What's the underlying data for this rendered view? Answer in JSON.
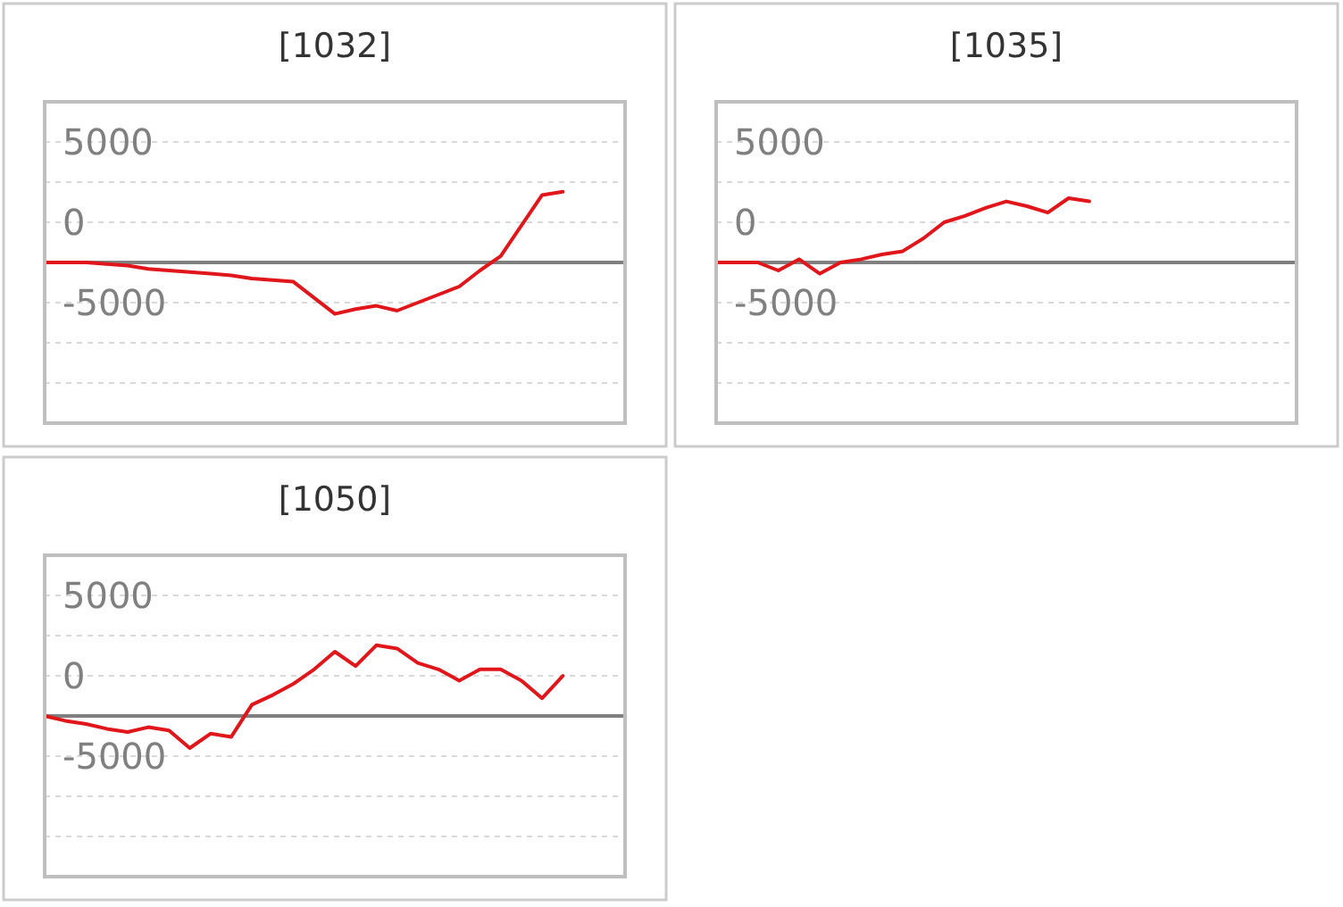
{
  "chart_data": [
    {
      "type": "line",
      "title": "[1032]",
      "categories": [
        null,
        null,
        null,
        null,
        null,
        null,
        null,
        null,
        null,
        null,
        null,
        null,
        null,
        null,
        null,
        null,
        null,
        null,
        null,
        null,
        null,
        null,
        null,
        null,
        null,
        null,
        null,
        null,
        null
      ],
      "series": [
        {
          "color": "#e0161b",
          "values": [
            -2500,
            -2500,
            -2500,
            -2600,
            -2700,
            -2900,
            -3000,
            -3100,
            -3200,
            -3300,
            -3500,
            -3600,
            -3700,
            -4700,
            -5700,
            -5400,
            -5200,
            -5500,
            -5000,
            -4500,
            -4000,
            -3000,
            -2100,
            -200,
            1700,
            1900,
            null,
            null,
            null
          ]
        }
      ],
      "ylim": [
        -12500,
        7500
      ],
      "yticks": [
        5000,
        {
          "value": 2500,
          "label": null
        },
        0,
        {
          "value": -2500,
          "label": null
        },
        -5000,
        {
          "value": -7500,
          "label": null
        },
        {
          "value": -10000,
          "label": null
        }
      ],
      "grid": "y",
      "tick_labels": "y",
      "ref_lines": [
        {
          "axis": "y",
          "value": -2500,
          "color": "#808080"
        }
      ]
    },
    {
      "type": "line",
      "title": "[1035]",
      "categories": [
        null,
        null,
        null,
        null,
        null,
        null,
        null,
        null,
        null,
        null,
        null,
        null,
        null,
        null,
        null,
        null,
        null,
        null,
        null,
        null,
        null,
        null,
        null,
        null,
        null,
        null,
        null,
        null,
        null
      ],
      "series": [
        {
          "color": "#e0161b",
          "values": [
            -2500,
            -2500,
            -2500,
            -3000,
            -2300,
            -3200,
            -2500,
            -2300,
            -2000,
            -1800,
            -1000,
            0,
            400,
            900,
            1300,
            1000,
            600,
            1500,
            1300,
            null,
            null,
            null,
            null,
            null,
            null,
            null,
            null,
            null,
            null
          ]
        }
      ],
      "ylim": [
        -12500,
        7500
      ],
      "yticks": [
        5000,
        {
          "value": 2500,
          "label": null
        },
        0,
        {
          "value": -2500,
          "label": null
        },
        -5000,
        {
          "value": -7500,
          "label": null
        },
        {
          "value": -10000,
          "label": null
        }
      ],
      "grid": "y",
      "tick_labels": "y",
      "ref_lines": [
        {
          "axis": "y",
          "value": -2500,
          "color": "#808080"
        }
      ]
    },
    {
      "type": "line",
      "title": "[1050]",
      "categories": [
        null,
        null,
        null,
        null,
        null,
        null,
        null,
        null,
        null,
        null,
        null,
        null,
        null,
        null,
        null,
        null,
        null,
        null,
        null,
        null,
        null,
        null,
        null,
        null,
        null,
        null,
        null,
        null,
        null
      ],
      "series": [
        {
          "color": "#e0161b",
          "values": [
            -2500,
            -2800,
            -3000,
            -3300,
            -3500,
            -3200,
            -3400,
            -4500,
            -3600,
            -3800,
            -1800,
            -1200,
            -500,
            400,
            1500,
            600,
            1900,
            1700,
            800,
            400,
            -300,
            400,
            400,
            -300,
            -1400,
            0,
            null,
            null,
            null
          ]
        }
      ],
      "ylim": [
        -12500,
        7500
      ],
      "yticks": [
        5000,
        {
          "value": 2500,
          "label": null
        },
        0,
        {
          "value": -2500,
          "label": null
        },
        -5000,
        {
          "value": -7500,
          "label": null
        },
        {
          "value": -10000,
          "label": null
        }
      ],
      "grid": "y",
      "tick_labels": "y",
      "ref_lines": [
        {
          "axis": "y",
          "value": -2500,
          "color": "#808080"
        }
      ]
    }
  ]
}
